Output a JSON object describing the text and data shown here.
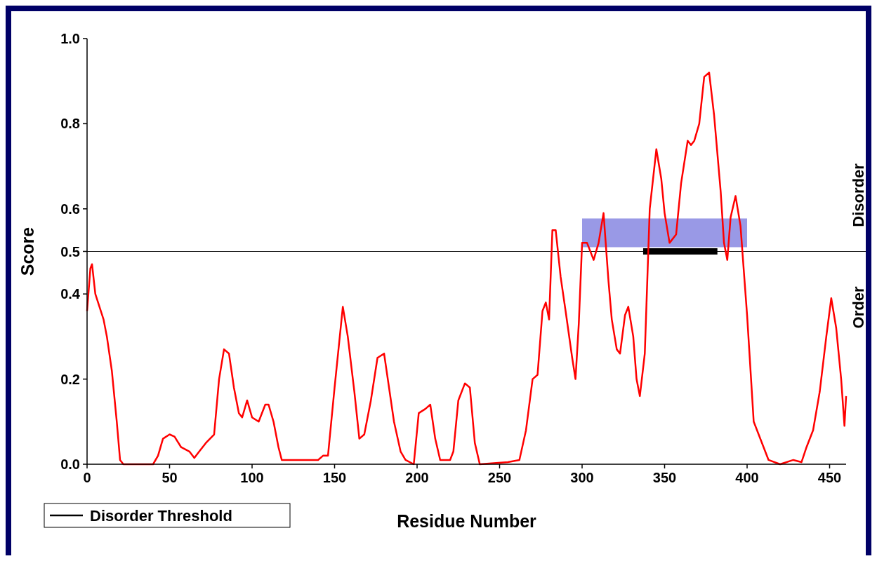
{
  "chart_data": {
    "type": "line",
    "xlabel": "Residue Number",
    "ylabel": "Score",
    "xlim": [
      0,
      460
    ],
    "xticks": [
      0,
      50,
      100,
      150,
      200,
      250,
      300,
      350,
      400,
      450
    ],
    "ylim": [
      0,
      1
    ],
    "yticks": [
      {
        "value": 0,
        "label": "0.0"
      },
      0.2,
      0.4,
      0.5,
      0.6,
      0.8,
      {
        "value": 1,
        "label": "1.0"
      }
    ],
    "grid": false,
    "legend": "bottom left",
    "marker": "none",
    "line_style": "solid",
    "ref_lines": [
      {
        "axis": "y",
        "value": 0.5,
        "label": "Disorder Threshold",
        "color": "#000000"
      }
    ],
    "bands": [
      {
        "axis": "x",
        "from": 300,
        "to": 400,
        "color": "#9999e6"
      }
    ],
    "annotations": [
      "Disorder",
      "Order"
    ],
    "series": [
      {
        "color": "#000000",
        "x": [
          337,
          382
        ],
        "values": [
          0.5,
          0.5
        ]
      },
      {
        "color": "#ff0000",
        "x": [
          0,
          2,
          3,
          5,
          10,
          12,
          15,
          18,
          20,
          22,
          40,
          43,
          46,
          50,
          53,
          57,
          62,
          65,
          68,
          72,
          77,
          80,
          83,
          86,
          89,
          92,
          94,
          97,
          100,
          104,
          108,
          110,
          113,
          116,
          118,
          140,
          143,
          146,
          150,
          155,
          158,
          162,
          165,
          168,
          172,
          176,
          180,
          183,
          186,
          190,
          193,
          198,
          201,
          205,
          208,
          211,
          214,
          220,
          222,
          225,
          229,
          232,
          235,
          238,
          255,
          262,
          266,
          270,
          273,
          276,
          278,
          280,
          282,
          284,
          287,
          290,
          294,
          296,
          298,
          300,
          303,
          307,
          310,
          313,
          316,
          318,
          321,
          323,
          326,
          328,
          331,
          333,
          335,
          338,
          341,
          345,
          348,
          350,
          353,
          357,
          360,
          364,
          366,
          368,
          371,
          374,
          377,
          380,
          384,
          386,
          388,
          390,
          393,
          396,
          400,
          404,
          410,
          413,
          420,
          428,
          433,
          436,
          440,
          444,
          448,
          451,
          454,
          457,
          459,
          460
        ],
        "values": [
          0.36,
          0.46,
          0.47,
          0.4,
          0.34,
          0.3,
          0.22,
          0.1,
          0.01,
          0,
          0,
          0.02,
          0.06,
          0.07,
          0.065,
          0.04,
          0.03,
          0.015,
          0.03,
          0.05,
          0.07,
          0.2,
          0.27,
          0.26,
          0.18,
          0.12,
          0.11,
          0.15,
          0.11,
          0.1,
          0.14,
          0.14,
          0.1,
          0.04,
          0.01,
          0.01,
          0.02,
          0.02,
          0.18,
          0.37,
          0.3,
          0.17,
          0.06,
          0.07,
          0.15,
          0.25,
          0.26,
          0.18,
          0.1,
          0.03,
          0.01,
          0,
          0.12,
          0.13,
          0.14,
          0.06,
          0.01,
          0.01,
          0.03,
          0.15,
          0.19,
          0.18,
          0.05,
          0,
          0.005,
          0.01,
          0.08,
          0.2,
          0.21,
          0.36,
          0.38,
          0.34,
          0.55,
          0.55,
          0.44,
          0.36,
          0.25,
          0.2,
          0.33,
          0.52,
          0.52,
          0.48,
          0.52,
          0.59,
          0.43,
          0.34,
          0.27,
          0.26,
          0.35,
          0.37,
          0.3,
          0.2,
          0.16,
          0.26,
          0.6,
          0.74,
          0.67,
          0.59,
          0.52,
          0.54,
          0.66,
          0.76,
          0.75,
          0.76,
          0.8,
          0.91,
          0.92,
          0.82,
          0.64,
          0.52,
          0.48,
          0.58,
          0.63,
          0.56,
          0.35,
          0.1,
          0.04,
          0.01,
          0,
          0.01,
          0.005,
          0.04,
          0.08,
          0.17,
          0.3,
          0.39,
          0.32,
          0.2,
          0.09,
          0.16
        ]
      }
    ]
  }
}
